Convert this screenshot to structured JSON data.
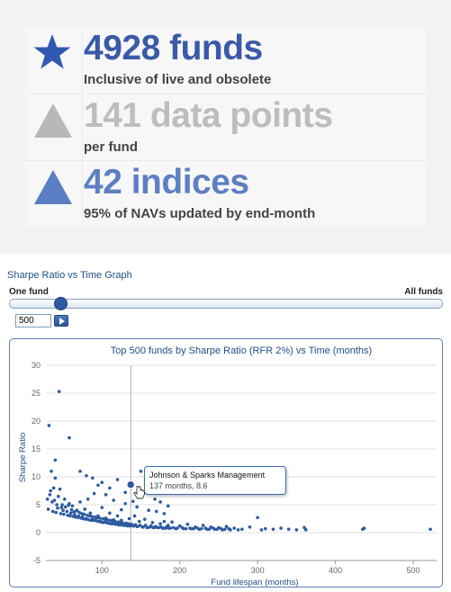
{
  "stats": [
    {
      "big": "4928 funds",
      "small": "Inclusive of live and obsolete",
      "icon": "star-icon",
      "color": "#3a5aa8"
    },
    {
      "big": "141 data points",
      "small": "per fund",
      "icon": "triangle-icon",
      "color": "#bdbdbd"
    },
    {
      "big": "42 indices",
      "small": "95% of NAVs updated by end-month",
      "icon": "triangle-icon",
      "color": "#5d7fc3"
    }
  ],
  "graph": {
    "section_title": "Sharpe Ratio vs Time Graph",
    "slider_left": "One fund",
    "slider_right": "All funds",
    "slider_value": 0.12,
    "input_value": "500"
  },
  "chart_data": {
    "type": "scatter",
    "title": "Top 500 funds by Sharpe Ratio (RFR 2%) vs Time (months)",
    "xlabel": "Fund lifespan (months)",
    "ylabel": "Sharpe Ratio",
    "xlim": [
      28,
      530
    ],
    "ylim": [
      -5,
      30
    ],
    "xticks": [
      100,
      200,
      300,
      400,
      500
    ],
    "yticks": [
      -5,
      0,
      5,
      10,
      15,
      20,
      25,
      30
    ],
    "grid": true,
    "crosshair_x": 137,
    "series": [
      {
        "color": "#2d5aa0",
        "points": [
          [
            32,
            19.2
          ],
          [
            40,
            13.0
          ],
          [
            45,
            25.3
          ],
          [
            58,
            17.0
          ],
          [
            72,
            11.0
          ],
          [
            35,
            11.0
          ],
          [
            40,
            9.8
          ],
          [
            38,
            8.0
          ],
          [
            34,
            7.5
          ],
          [
            30,
            6.0
          ],
          [
            36,
            5.5
          ],
          [
            42,
            5.0
          ],
          [
            44,
            6.5
          ],
          [
            46,
            7.8
          ],
          [
            48,
            4.5
          ],
          [
            50,
            4.0
          ],
          [
            52,
            6.0
          ],
          [
            55,
            3.8
          ],
          [
            58,
            5.2
          ],
          [
            60,
            3.5
          ],
          [
            62,
            4.8
          ],
          [
            65,
            3.2
          ],
          [
            68,
            4.0
          ],
          [
            70,
            3.0
          ],
          [
            72,
            5.5
          ],
          [
            75,
            2.8
          ],
          [
            78,
            4.2
          ],
          [
            80,
            2.5
          ],
          [
            82,
            6.0
          ],
          [
            85,
            3.5
          ],
          [
            88,
            2.4
          ],
          [
            90,
            7.0
          ],
          [
            92,
            2.2
          ],
          [
            95,
            3.0
          ],
          [
            98,
            2.0
          ],
          [
            100,
            4.5
          ],
          [
            102,
            1.8
          ],
          [
            105,
            2.6
          ],
          [
            108,
            1.7
          ],
          [
            110,
            3.5
          ],
          [
            112,
            1.6
          ],
          [
            115,
            2.3
          ],
          [
            118,
            1.5
          ],
          [
            120,
            3.0
          ],
          [
            122,
            1.4
          ],
          [
            125,
            2.2
          ],
          [
            128,
            1.3
          ],
          [
            130,
            5.2
          ],
          [
            133,
            1.2
          ],
          [
            135,
            2.5
          ],
          [
            137,
            8.6
          ],
          [
            140,
            1.2
          ],
          [
            142,
            3.0
          ],
          [
            145,
            1.1
          ],
          [
            148,
            2.0
          ],
          [
            150,
            6.5
          ],
          [
            152,
            1.0
          ],
          [
            155,
            2.4
          ],
          [
            158,
            0.9
          ],
          [
            160,
            4.0
          ],
          [
            162,
            1.0
          ],
          [
            165,
            1.8
          ],
          [
            168,
            0.9
          ],
          [
            170,
            3.8
          ],
          [
            172,
            0.9
          ],
          [
            175,
            1.6
          ],
          [
            178,
            0.8
          ],
          [
            180,
            2.0
          ],
          [
            182,
            0.8
          ],
          [
            185,
            1.3
          ],
          [
            188,
            0.8
          ],
          [
            190,
            1.9
          ],
          [
            195,
            0.7
          ],
          [
            200,
            1.2
          ],
          [
            205,
            0.7
          ],
          [
            210,
            1.5
          ],
          [
            215,
            0.7
          ],
          [
            220,
            1.0
          ],
          [
            225,
            0.6
          ],
          [
            230,
            1.3
          ],
          [
            235,
            0.6
          ],
          [
            240,
            1.0
          ],
          [
            245,
            0.6
          ],
          [
            250,
            0.9
          ],
          [
            255,
            0.5
          ],
          [
            260,
            1.1
          ],
          [
            265,
            0.5
          ],
          [
            270,
            0.8
          ],
          [
            275,
            0.5
          ],
          [
            280,
            0.6
          ],
          [
            290,
            1.0
          ],
          [
            300,
            2.7
          ],
          [
            305,
            0.5
          ],
          [
            310,
            0.7
          ],
          [
            320,
            0.6
          ],
          [
            330,
            0.8
          ],
          [
            340,
            0.6
          ],
          [
            350,
            0.5
          ],
          [
            360,
            0.9
          ],
          [
            362,
            0.5
          ],
          [
            435,
            0.6
          ],
          [
            437,
            0.8
          ],
          [
            522,
            0.6
          ],
          [
            31,
            4.2
          ],
          [
            33,
            6.8
          ],
          [
            37,
            3.8
          ],
          [
            39,
            5.8
          ],
          [
            41,
            3.6
          ],
          [
            43,
            4.4
          ],
          [
            47,
            3.4
          ],
          [
            49,
            5.0
          ],
          [
            51,
            3.3
          ],
          [
            53,
            4.6
          ],
          [
            56,
            3.1
          ],
          [
            57,
            4.9
          ],
          [
            59,
            3.0
          ],
          [
            61,
            4.1
          ],
          [
            63,
            2.9
          ],
          [
            64,
            3.7
          ],
          [
            66,
            2.8
          ],
          [
            67,
            3.9
          ],
          [
            69,
            2.7
          ],
          [
            71,
            3.6
          ],
          [
            73,
            2.6
          ],
          [
            74,
            3.4
          ],
          [
            76,
            2.5
          ],
          [
            77,
            3.3
          ],
          [
            79,
            2.4
          ],
          [
            81,
            3.1
          ],
          [
            83,
            2.3
          ],
          [
            84,
            3.0
          ],
          [
            86,
            2.2
          ],
          [
            87,
            2.9
          ],
          [
            89,
            2.2
          ],
          [
            91,
            2.8
          ],
          [
            93,
            2.1
          ],
          [
            94,
            2.7
          ],
          [
            96,
            2.0
          ],
          [
            97,
            2.6
          ],
          [
            99,
            1.9
          ],
          [
            101,
            2.5
          ],
          [
            103,
            1.9
          ],
          [
            104,
            2.4
          ],
          [
            106,
            1.8
          ],
          [
            107,
            2.3
          ],
          [
            109,
            1.7
          ],
          [
            111,
            2.2
          ],
          [
            113,
            1.6
          ],
          [
            114,
            2.1
          ],
          [
            116,
            1.6
          ],
          [
            117,
            2.0
          ],
          [
            119,
            1.5
          ],
          [
            121,
            1.9
          ],
          [
            123,
            1.4
          ],
          [
            124,
            1.8
          ],
          [
            126,
            1.4
          ],
          [
            127,
            1.7
          ],
          [
            129,
            1.3
          ],
          [
            131,
            1.7
          ],
          [
            132,
            1.3
          ],
          [
            134,
            1.6
          ],
          [
            136,
            1.2
          ],
          [
            138,
            1.5
          ],
          [
            141,
            1.2
          ],
          [
            143,
            1.4
          ],
          [
            146,
            1.1
          ],
          [
            149,
            1.3
          ],
          [
            153,
            1.0
          ],
          [
            156,
            1.3
          ],
          [
            159,
            0.9
          ],
          [
            163,
            1.2
          ],
          [
            166,
            0.9
          ],
          [
            169,
            1.1
          ],
          [
            173,
            0.9
          ],
          [
            176,
            1.0
          ],
          [
            179,
            0.8
          ],
          [
            183,
            1.0
          ],
          [
            186,
            0.8
          ],
          [
            192,
            0.9
          ],
          [
            197,
            0.8
          ],
          [
            203,
            0.9
          ],
          [
            208,
            0.7
          ],
          [
            213,
            0.8
          ],
          [
            218,
            0.7
          ],
          [
            223,
            0.8
          ],
          [
            228,
            0.7
          ],
          [
            233,
            0.8
          ],
          [
            238,
            0.6
          ],
          [
            243,
            0.8
          ],
          [
            248,
            0.6
          ],
          [
            253,
            0.7
          ],
          [
            258,
            0.6
          ],
          [
            263,
            0.7
          ],
          [
            150,
            11.0
          ],
          [
            160,
            8.0
          ],
          [
            155,
            7.2
          ],
          [
            165,
            9.2
          ],
          [
            120,
            9.5
          ],
          [
            110,
            8.0
          ],
          [
            100,
            9.0
          ],
          [
            95,
            8.5
          ],
          [
            88,
            9.8
          ],
          [
            80,
            10.2
          ],
          [
            175,
            5.5
          ],
          [
            185,
            4.8
          ],
          [
            168,
            6.0
          ],
          [
            145,
            4.6
          ],
          [
            130,
            7.2
          ],
          [
            115,
            5.8
          ],
          [
            105,
            6.8
          ],
          [
            125,
            4.1
          ],
          [
            140,
            5.6
          ],
          [
            180,
            3.4
          ]
        ]
      }
    ],
    "tooltip": {
      "name": "Johnson & Sparks Management",
      "value": "137 months, 8.6"
    }
  }
}
